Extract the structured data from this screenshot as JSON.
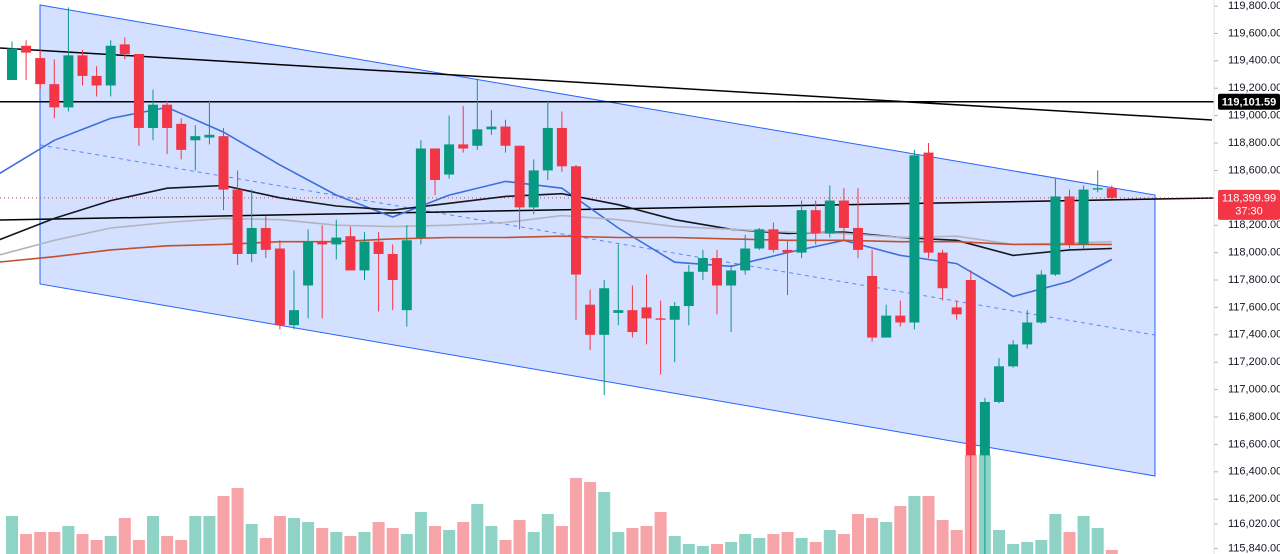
{
  "chart_data": {
    "type": "candlestick",
    "ylim": [
      115800,
      119844
    ],
    "yticks": [
      {
        "value": 119800,
        "label": "119,800.00"
      },
      {
        "value": 119600,
        "label": "119,600.00"
      },
      {
        "value": 119400,
        "label": "119,400.00"
      },
      {
        "value": 119200,
        "label": "119,200.00"
      },
      {
        "value": 119000,
        "label": "119,000.00"
      },
      {
        "value": 118800,
        "label": "118,800.00"
      },
      {
        "value": 118600,
        "label": "118,600.00"
      },
      {
        "value": 118200,
        "label": "118,200.00"
      },
      {
        "value": 118000,
        "label": "118,000.00"
      },
      {
        "value": 117800,
        "label": "117,800.00"
      },
      {
        "value": 117600,
        "label": "117,600.00"
      },
      {
        "value": 117400,
        "label": "117,400.00"
      },
      {
        "value": 117200,
        "label": "117,200.00"
      },
      {
        "value": 117000,
        "label": "117,000.00"
      },
      {
        "value": 116800,
        "label": "116,800.00"
      },
      {
        "value": 116600,
        "label": "116,600.00"
      },
      {
        "value": 116400,
        "label": "116,400.00"
      },
      {
        "value": 116200,
        "label": "116,200.00"
      },
      {
        "value": 116020,
        "label": "116,020.00"
      },
      {
        "value": 115840,
        "label": "115,840.00"
      }
    ],
    "up_color": "#089981",
    "down_color": "#f23645",
    "volume_up_color": "#8fd3c7",
    "volume_down_color": "#f7a4a8",
    "open": [
      119260,
      119510,
      119420,
      119230,
      119060,
      119440,
      119290,
      119220,
      119520,
      119450,
      118910,
      119080,
      118940,
      118820,
      118840,
      118850,
      118460,
      117990,
      118180,
      118030,
      117470,
      117760,
      118080,
      118060,
      118120,
      117870,
      118080,
      117990,
      117580,
      118110,
      118760,
      118570,
      118790,
      118780,
      118900,
      118920,
      118780,
      118330,
      118600,
      118910,
      118630,
      117620,
      117400,
      117560,
      117580,
      117600,
      117520,
      117510,
      117610,
      117860,
      117960,
      117760,
      117870,
      118030,
      118170,
      118020,
      118000,
      118310,
      118140,
      118380,
      118180,
      117830,
      117380,
      117540,
      117490,
      118730,
      118000,
      117600,
      117800,
      116520,
      116910,
      117170,
      117330,
      117490,
      117840,
      118410,
      118060,
      118460,
      118470
    ],
    "high": [
      119540,
      119550,
      119480,
      119410,
      119790,
      119480,
      119360,
      119550,
      119570,
      119450,
      119190,
      119110,
      118980,
      118930,
      119110,
      118910,
      118600,
      118460,
      118270,
      118090,
      117870,
      118170,
      118200,
      118240,
      118190,
      118150,
      118150,
      118060,
      118200,
      118820,
      118760,
      119000,
      119070,
      119270,
      119040,
      118970,
      118780,
      118680,
      119110,
      119030,
      118640,
      117730,
      117800,
      118060,
      117760,
      117840,
      117650,
      117640,
      117910,
      118020,
      118020,
      117910,
      118130,
      118180,
      118220,
      118090,
      118380,
      118380,
      118490,
      118470,
      118470,
      118020,
      117620,
      117650,
      118750,
      118800,
      118020,
      117650,
      117870,
      116940,
      117230,
      117360,
      117580,
      117870,
      118540,
      118460,
      118490,
      118600,
      118490
    ],
    "low": [
      119260,
      119260,
      119190,
      118980,
      119030,
      119220,
      119140,
      119140,
      119410,
      118780,
      118820,
      118720,
      118680,
      118600,
      118790,
      118310,
      117910,
      117930,
      117960,
      117440,
      117440,
      117520,
      117520,
      117950,
      117870,
      117800,
      117570,
      117580,
      117460,
      118060,
      118420,
      118540,
      118730,
      118750,
      118860,
      118730,
      118170,
      118280,
      118530,
      118590,
      117510,
      117290,
      116960,
      117470,
      117380,
      117330,
      117110,
      117200,
      117470,
      117800,
      117550,
      117420,
      117840,
      118020,
      118000,
      117690,
      117960,
      118060,
      118110,
      118090,
      117960,
      117350,
      117380,
      117460,
      117440,
      117960,
      117650,
      117510,
      115800,
      115800,
      116900,
      117160,
      117300,
      117480,
      117830,
      118030,
      118030,
      118440,
      118390
    ],
    "close": [
      119490,
      119460,
      119230,
      119060,
      119440,
      119290,
      119220,
      119510,
      119450,
      118910,
      119080,
      118910,
      118750,
      118850,
      118860,
      118460,
      117990,
      118180,
      118020,
      117470,
      117580,
      118080,
      118060,
      118110,
      117870,
      118080,
      117990,
      117800,
      118090,
      118760,
      118530,
      118790,
      118760,
      118900,
      118920,
      118780,
      118330,
      118600,
      118910,
      118630,
      117840,
      117400,
      117740,
      117580,
      117420,
      117520,
      117510,
      117610,
      117860,
      117960,
      117760,
      117870,
      118030,
      118170,
      118020,
      118000,
      118310,
      118140,
      118380,
      118180,
      118020,
      117380,
      117540,
      117490,
      118710,
      118000,
      117740,
      117550,
      116520,
      116910,
      117170,
      117330,
      117490,
      117840,
      118410,
      118060,
      118460,
      118470,
      118399.99
    ],
    "volume_lim": [
      0,
      100
    ],
    "volume": [
      38,
      20,
      22,
      22,
      28,
      20,
      14,
      18,
      36,
      14,
      38,
      18,
      14,
      38,
      38,
      58,
      66,
      30,
      16,
      38,
      36,
      32,
      26,
      22,
      18,
      22,
      32,
      26,
      20,
      42,
      28,
      24,
      32,
      50,
      28,
      14,
      34,
      22,
      40,
      28,
      76,
      72,
      62,
      22,
      26,
      28,
      42,
      18,
      10,
      8,
      10,
      12,
      20,
      16,
      20,
      22,
      16,
      12,
      24,
      20,
      40,
      36,
      32,
      48,
      58,
      58,
      34,
      24,
      99,
      99,
      24,
      10,
      12,
      14,
      40,
      22,
      38,
      26,
      4
    ],
    "moving_averages": [
      {
        "color": "#3d6fdc",
        "x": [
          -1,
          3,
          7,
          11,
          15,
          19,
          23,
          27,
          31,
          35,
          39,
          43,
          47,
          51,
          55,
          59,
          63,
          67,
          71,
          75,
          78
        ],
        "values": [
          118570,
          118820,
          118980,
          119060,
          118880,
          118640,
          118420,
          118260,
          118420,
          118520,
          118470,
          118180,
          117930,
          117900,
          118000,
          118090,
          117980,
          117920,
          117680,
          117790,
          117950
        ]
      },
      {
        "color": "#131722",
        "x": [
          -1,
          3,
          7,
          11,
          15,
          19,
          23,
          27,
          31,
          35,
          39,
          43,
          47,
          51,
          55,
          59,
          63,
          67,
          71,
          75,
          78
        ],
        "values": [
          118090,
          118250,
          118380,
          118470,
          118490,
          118400,
          118340,
          118310,
          118360,
          118410,
          118430,
          118350,
          118240,
          118170,
          118140,
          118150,
          118110,
          118090,
          117980,
          118020,
          118030
        ]
      },
      {
        "color": "#b2b5be",
        "x": [
          -1,
          3,
          7,
          11,
          15,
          19,
          23,
          27,
          31,
          35,
          39,
          43,
          47,
          51,
          55,
          59,
          63,
          67,
          71,
          75,
          78
        ],
        "values": [
          117980,
          118090,
          118180,
          118220,
          118250,
          118240,
          118200,
          118190,
          118200,
          118220,
          118270,
          118240,
          118190,
          118170,
          118150,
          118140,
          118110,
          118120,
          118060,
          118070,
          118080
        ]
      },
      {
        "color": "#c2502e",
        "x": [
          -1,
          3,
          7,
          11,
          15,
          19,
          23,
          27,
          31,
          35,
          39,
          43,
          47,
          51,
          55,
          59,
          63,
          67,
          71,
          75,
          78
        ],
        "values": [
          117930,
          117970,
          118020,
          118050,
          118060,
          118080,
          118080,
          118100,
          118110,
          118110,
          118120,
          118110,
          118110,
          118100,
          118090,
          118090,
          118080,
          118080,
          118060,
          118060,
          118060
        ]
      }
    ],
    "levels": [
      {
        "value": 119101.59,
        "label": "119,101.59",
        "color": "#000000"
      }
    ],
    "last_price": {
      "value": 118399.99,
      "label": "118,399.99",
      "countdown": "37:30",
      "color": "#f23645"
    }
  }
}
